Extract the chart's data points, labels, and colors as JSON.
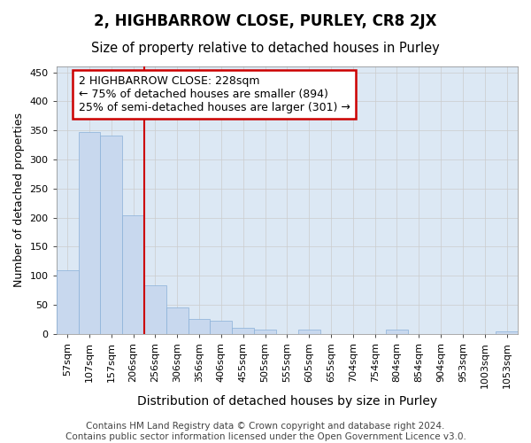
{
  "title": "2, HIGHBARROW CLOSE, PURLEY, CR8 2JX",
  "subtitle": "Size of property relative to detached houses in Purley",
  "xlabel": "Distribution of detached houses by size in Purley",
  "ylabel": "Number of detached properties",
  "footer_line1": "Contains HM Land Registry data © Crown copyright and database right 2024.",
  "footer_line2": "Contains public sector information licensed under the Open Government Licence v3.0.",
  "bin_labels": [
    "57sqm",
    "107sqm",
    "157sqm",
    "206sqm",
    "256sqm",
    "306sqm",
    "356sqm",
    "406sqm",
    "455sqm",
    "505sqm",
    "555sqm",
    "605sqm",
    "655sqm",
    "704sqm",
    "754sqm",
    "804sqm",
    "854sqm",
    "904sqm",
    "953sqm",
    "1003sqm",
    "1053sqm"
  ],
  "bar_heights": [
    110,
    347,
    341,
    204,
    84,
    46,
    25,
    22,
    11,
    7,
    0,
    7,
    0,
    0,
    0,
    8,
    0,
    0,
    0,
    0,
    4
  ],
  "bar_color": "#c8d8ee",
  "bar_edge_color": "#8ab0d8",
  "grid_color": "#cccccc",
  "vline_color": "#cc0000",
  "annotation_line1": "2 HIGHBARROW CLOSE: 228sqm",
  "annotation_line2": "← 75% of detached houses are smaller (894)",
  "annotation_line3": "25% of semi-detached houses are larger (301) →",
  "annotation_box_edgecolor": "#cc0000",
  "ylim": [
    0,
    460
  ],
  "yticks": [
    0,
    50,
    100,
    150,
    200,
    250,
    300,
    350,
    400,
    450
  ],
  "fig_bg_color": "#ffffff",
  "plot_bg_color": "#dce8f4",
  "title_fontsize": 12,
  "subtitle_fontsize": 10.5,
  "ylabel_fontsize": 9,
  "xlabel_fontsize": 10,
  "annotation_fontsize": 9,
  "footer_fontsize": 7.5,
  "tick_fontsize": 8,
  "vline_bin_index": 4
}
